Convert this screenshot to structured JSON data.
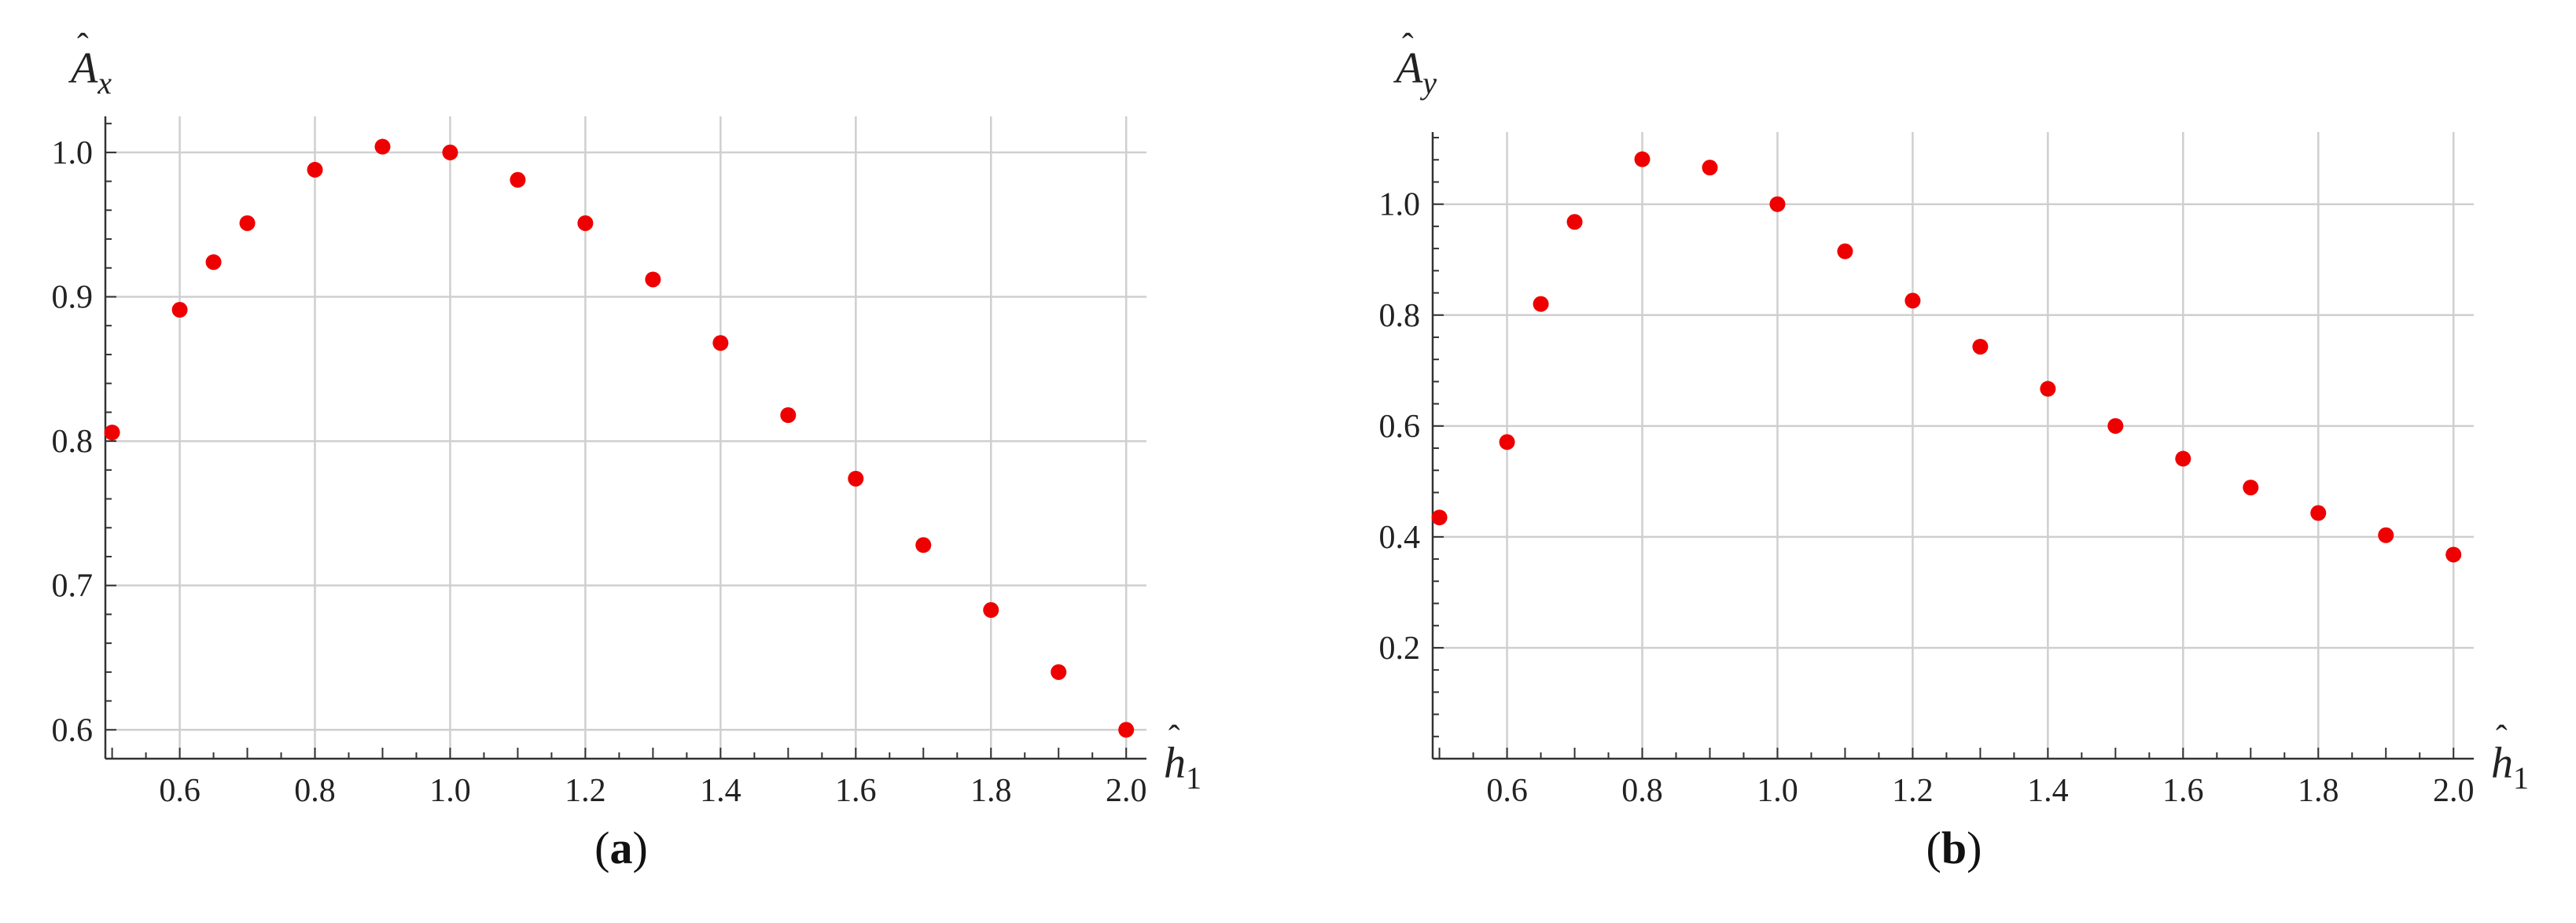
{
  "figure": {
    "panels": [
      {
        "id": "a",
        "caption_open": "(",
        "caption_letter": "a",
        "caption_close": ")"
      },
      {
        "id": "b",
        "caption_open": "(",
        "caption_letter": "b",
        "caption_close": ")"
      }
    ]
  },
  "chart_data": [
    {
      "type": "scatter",
      "title": "",
      "xlabel": "ĥ1",
      "ylabel": "Âx",
      "xlabel_base": "h",
      "xlabel_sub": "1",
      "ylabel_base": "A",
      "ylabel_sub": "x",
      "xlim": [
        0.49,
        2.03
      ],
      "ylim": [
        0.58,
        1.025
      ],
      "xticks": [
        0.6,
        0.8,
        1.0,
        1.2,
        1.4,
        1.6,
        1.8,
        2.0
      ],
      "xtick_labels": [
        "0.6",
        "0.8",
        "1.0",
        "1.2",
        "1.4",
        "1.6",
        "1.8",
        "2.0"
      ],
      "yticks": [
        0.6,
        0.7,
        0.8,
        0.9,
        1.0
      ],
      "ytick_labels": [
        "0.6",
        "0.7",
        "0.8",
        "0.9",
        "1.0"
      ],
      "x_minor_step": 0.05,
      "y_minor_step": 0.02,
      "grid": true,
      "marker_color": "#ee0000",
      "x": [
        0.5,
        0.6,
        0.65,
        0.7,
        0.8,
        0.9,
        1.0,
        1.1,
        1.2,
        1.3,
        1.4,
        1.5,
        1.6,
        1.7,
        1.8,
        1.9,
        2.0
      ],
      "y": [
        0.806,
        0.891,
        0.924,
        0.951,
        0.988,
        1.004,
        1.0,
        0.981,
        0.951,
        0.912,
        0.868,
        0.818,
        0.774,
        0.728,
        0.683,
        0.64,
        0.6
      ]
    },
    {
      "type": "scatter",
      "title": "",
      "xlabel": "ĥ1",
      "ylabel": "Ây",
      "xlabel_base": "h",
      "xlabel_sub": "1",
      "ylabel_base": "A",
      "ylabel_sub": "y",
      "xlim": [
        0.49,
        2.03
      ],
      "ylim": [
        0.0,
        1.13
      ],
      "xticks": [
        0.6,
        0.8,
        1.0,
        1.2,
        1.4,
        1.6,
        1.8,
        2.0
      ],
      "xtick_labels": [
        "0.6",
        "0.8",
        "1.0",
        "1.2",
        "1.4",
        "1.6",
        "1.8",
        "2.0"
      ],
      "yticks": [
        0.2,
        0.4,
        0.6,
        0.8,
        1.0
      ],
      "ytick_labels": [
        "0.2",
        "0.4",
        "0.6",
        "0.8",
        "1.0"
      ],
      "x_minor_step": 0.05,
      "y_minor_step": 0.04,
      "grid": true,
      "marker_color": "#ee0000",
      "x": [
        0.5,
        0.6,
        0.65,
        0.7,
        0.8,
        0.9,
        1.0,
        1.1,
        1.2,
        1.3,
        1.4,
        1.5,
        1.6,
        1.7,
        1.8,
        1.9,
        2.0
      ],
      "y": [
        0.435,
        0.571,
        0.82,
        0.968,
        1.081,
        1.066,
        1.0,
        0.915,
        0.826,
        0.743,
        0.667,
        0.6,
        0.541,
        0.489,
        0.443,
        0.403,
        0.368
      ]
    }
  ]
}
